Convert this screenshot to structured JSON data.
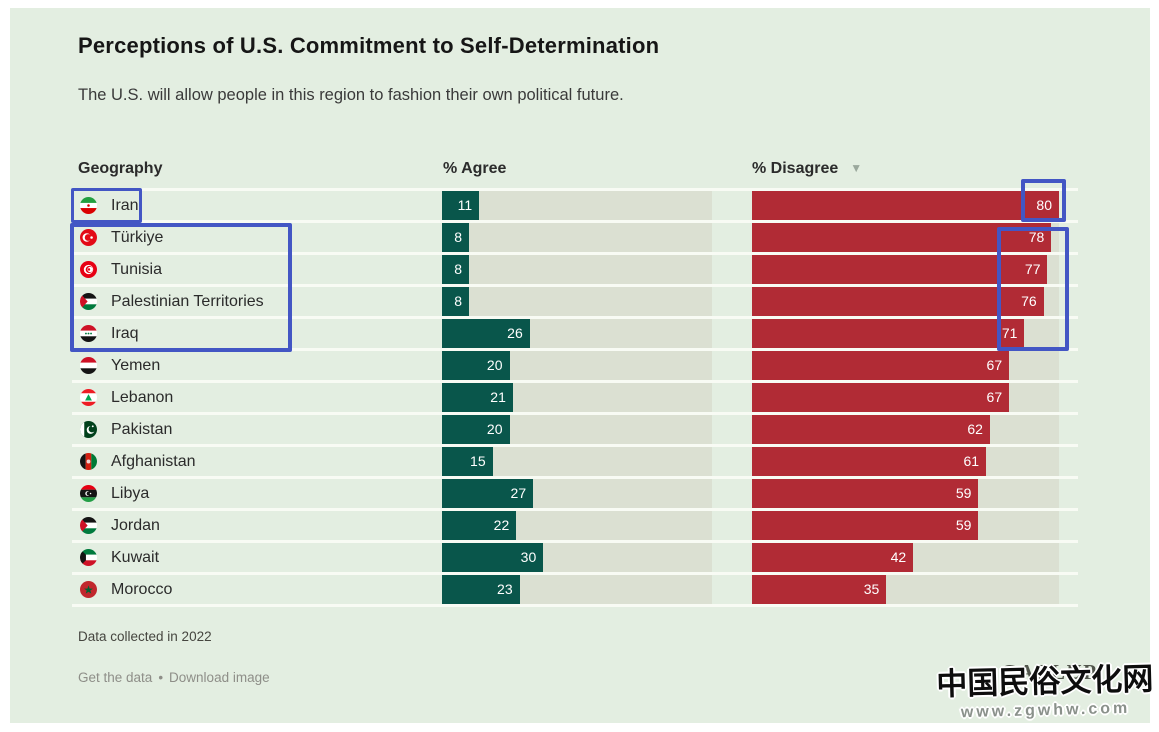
{
  "title": "Perceptions of U.S. Commitment to Self-Determination",
  "subtitle": "The U.S. will allow people in this region to fashion their own political future.",
  "columns": {
    "geography": "Geography",
    "agree": "% Agree",
    "disagree": "% Disagree",
    "sort_indicator": "▼"
  },
  "table": {
    "rows": [
      {
        "country": "Iran",
        "flag": "iran",
        "agree": 11,
        "disagree": 80
      },
      {
        "country": "Türkiye",
        "flag": "turkiye",
        "agree": 8,
        "disagree": 78
      },
      {
        "country": "Tunisia",
        "flag": "tunisia",
        "agree": 8,
        "disagree": 77
      },
      {
        "country": "Palestinian Territories",
        "flag": "palestinian-territories",
        "agree": 8,
        "disagree": 76
      },
      {
        "country": "Iraq",
        "flag": "iraq",
        "agree": 26,
        "disagree": 71
      },
      {
        "country": "Yemen",
        "flag": "yemen",
        "agree": 20,
        "disagree": 67
      },
      {
        "country": "Lebanon",
        "flag": "lebanon",
        "agree": 21,
        "disagree": 67
      },
      {
        "country": "Pakistan",
        "flag": "pakistan",
        "agree": 20,
        "disagree": 62
      },
      {
        "country": "Afghanistan",
        "flag": "afghanistan",
        "agree": 15,
        "disagree": 61
      },
      {
        "country": "Libya",
        "flag": "libya",
        "agree": 27,
        "disagree": 59
      },
      {
        "country": "Jordan",
        "flag": "jordan",
        "agree": 22,
        "disagree": 59
      },
      {
        "country": "Kuwait",
        "flag": "kuwait",
        "agree": 30,
        "disagree": 42
      },
      {
        "country": "Morocco",
        "flag": "morocco",
        "agree": 23,
        "disagree": 35
      }
    ]
  },
  "chart_data": {
    "type": "bar",
    "orientation": "horizontal",
    "title": "Perceptions of U.S. Commitment to Self-Determination",
    "subtitle": "The U.S. will allow people in this region to fashion their own political future.",
    "categories": [
      "Iran",
      "Türkiye",
      "Tunisia",
      "Palestinian Territories",
      "Iraq",
      "Yemen",
      "Lebanon",
      "Pakistan",
      "Afghanistan",
      "Libya",
      "Jordan",
      "Kuwait",
      "Morocco"
    ],
    "series": [
      {
        "name": "% Agree",
        "values": [
          11,
          8,
          8,
          8,
          26,
          20,
          21,
          20,
          15,
          27,
          22,
          30,
          23
        ]
      },
      {
        "name": "% Disagree",
        "values": [
          80,
          78,
          77,
          76,
          71,
          67,
          67,
          62,
          61,
          59,
          59,
          42,
          35
        ]
      }
    ],
    "sorted_by": "% Disagree descending",
    "scale_max": 80,
    "xlim": [
      0,
      80
    ],
    "grid": false,
    "legend_position": "column-headers",
    "note": "Data collected in 2022",
    "colors": {
      "agree": "#09564b",
      "disagree": "#b12b35",
      "track": "#dbe0d2",
      "background": "#e3eee1",
      "annotation": "#4356c4"
    }
  },
  "annotations": {
    "color": "#4356c4",
    "boxes": [
      "iran-label",
      "turkiye-to-iraq-labels",
      "iran-disagree-value-80",
      "disagree-values-78-to-71"
    ]
  },
  "footer": {
    "note": "Data collected in 2022",
    "link_get_data": "Get the data",
    "link_download": "Download image",
    "separator": "•"
  },
  "watermark": {
    "brand": "GALLUP",
    "cn_text": "中国民俗文化网",
    "url_text": "www.zgwhw.com"
  }
}
